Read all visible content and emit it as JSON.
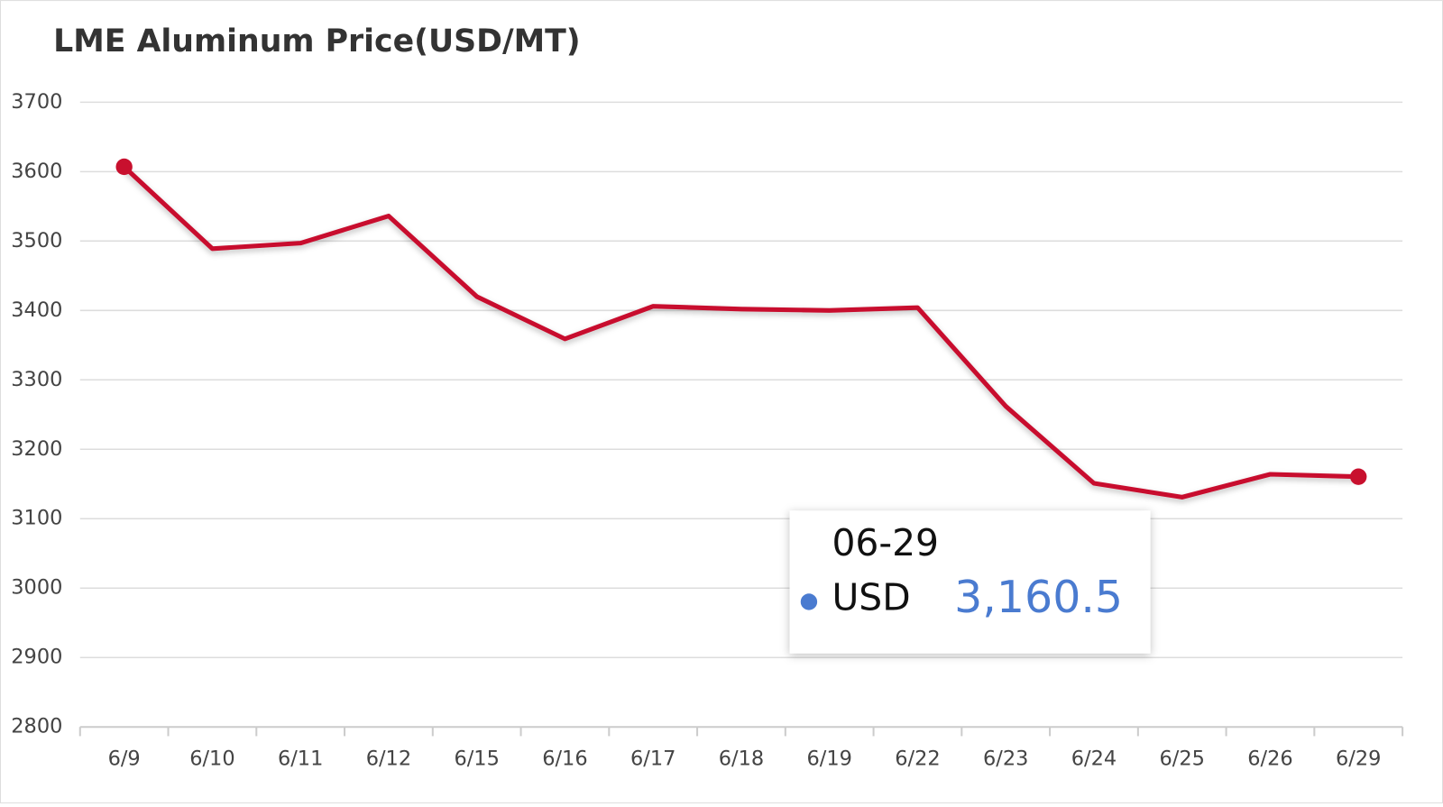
{
  "chart_data": {
    "type": "line",
    "title": "LME Aluminum Price(USD/MT)",
    "categories": [
      "6/9",
      "6/10",
      "6/11",
      "6/12",
      "6/15",
      "6/16",
      "6/17",
      "6/18",
      "6/19",
      "6/22",
      "6/23",
      "6/24",
      "6/25",
      "6/26",
      "6/29"
    ],
    "series": [
      {
        "name": "USD",
        "color": "#c8102e",
        "values": [
          3607,
          3489,
          3497,
          3536,
          3420,
          3359,
          3406,
          3402,
          3400,
          3404,
          3262,
          3151,
          3131,
          3164,
          3160.5
        ]
      }
    ],
    "ylim": [
      2800,
      3700
    ],
    "yticks": [
      2800,
      2900,
      3000,
      3100,
      3200,
      3300,
      3400,
      3500,
      3600,
      3700
    ],
    "grid": true,
    "tooltip": {
      "title": "06-29",
      "value_label": "3,160.5",
      "color": "#4a7bd0"
    }
  }
}
